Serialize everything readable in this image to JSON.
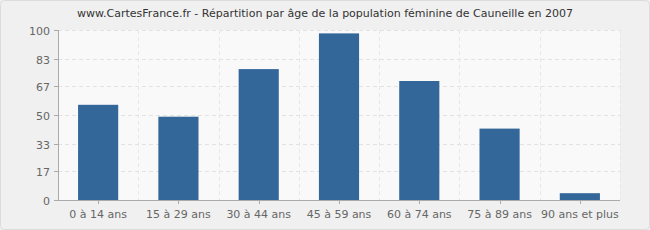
{
  "chart_data": {
    "type": "bar",
    "title": "www.CartesFrance.fr - Répartition par âge de la population féminine de Cauneille en 2007",
    "categories": [
      "0 à 14 ans",
      "15 à 29 ans",
      "30 à 44 ans",
      "45 à 59 ans",
      "60 à 74 ans",
      "75 à 89 ans",
      "90 ans et plus"
    ],
    "values": [
      56,
      49,
      77,
      98,
      70,
      42,
      4
    ],
    "color": "#336699",
    "ylim": [
      0,
      100
    ],
    "yticks": [
      0,
      17,
      33,
      50,
      67,
      83,
      100
    ],
    "grid": true
  }
}
